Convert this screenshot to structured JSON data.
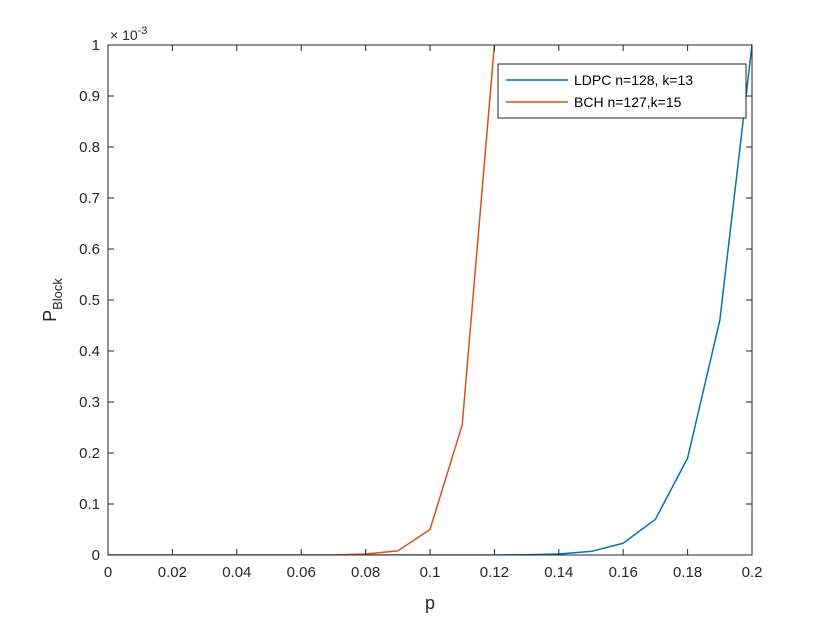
{
  "chart_data": {
    "type": "line",
    "title": "",
    "xlabel": "p",
    "ylabel_main": "P",
    "ylabel_sub": "Block",
    "y_exponent_label": "× 10",
    "y_exponent_power": "-3",
    "xlim": [
      0,
      0.2
    ],
    "ylim": [
      0,
      1
    ],
    "x_ticks": [
      0,
      0.02,
      0.04,
      0.06,
      0.08,
      0.1,
      0.12,
      0.14,
      0.16,
      0.18,
      0.2
    ],
    "x_tick_labels": [
      "0",
      "0.02",
      "0.04",
      "0.06",
      "0.08",
      "0.1",
      "0.12",
      "0.14",
      "0.16",
      "0.18",
      "0.2"
    ],
    "y_ticks": [
      0,
      0.1,
      0.2,
      0.3,
      0.4,
      0.5,
      0.6,
      0.7,
      0.8,
      0.9,
      1
    ],
    "y_tick_labels": [
      "0",
      "0.1",
      "0.2",
      "0.3",
      "0.4",
      "0.5",
      "0.6",
      "0.7",
      "0.8",
      "0.9",
      "1"
    ],
    "grid": false,
    "legend_position": "top-right",
    "series": [
      {
        "name": "LDPC n=128, k=13",
        "color": "#0072BD",
        "x": [
          0,
          0.01,
          0.02,
          0.03,
          0.04,
          0.05,
          0.06,
          0.07,
          0.08,
          0.09,
          0.1,
          0.11,
          0.12,
          0.13,
          0.14,
          0.15,
          0.16,
          0.17,
          0.18,
          0.19,
          0.2
        ],
        "y": [
          0,
          0,
          0,
          0,
          0,
          0,
          0,
          0,
          0,
          0,
          0,
          0,
          0,
          0.0005,
          0.002,
          0.007,
          0.023,
          0.07,
          0.19,
          0.46,
          1.0
        ]
      },
      {
        "name": "BCH n=127,k=15",
        "color": "#D95319",
        "x": [
          0,
          0.01,
          0.02,
          0.03,
          0.04,
          0.05,
          0.06,
          0.07,
          0.08,
          0.09,
          0.1,
          0.11,
          0.12
        ],
        "y": [
          0,
          0,
          0,
          0,
          0,
          0,
          0,
          0,
          0.002,
          0.008,
          0.05,
          0.255,
          1.0
        ]
      }
    ]
  }
}
